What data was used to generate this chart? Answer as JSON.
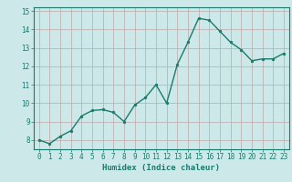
{
  "x": [
    0,
    1,
    2,
    3,
    4,
    5,
    6,
    7,
    8,
    9,
    10,
    11,
    12,
    13,
    14,
    15,
    16,
    17,
    18,
    19,
    20,
    21,
    22,
    23
  ],
  "y": [
    8.0,
    7.8,
    8.2,
    8.5,
    9.3,
    9.6,
    9.65,
    9.5,
    9.0,
    9.9,
    10.3,
    11.0,
    10.0,
    12.1,
    13.3,
    14.6,
    14.5,
    13.9,
    13.3,
    12.9,
    12.3,
    12.4,
    12.4,
    12.7
  ],
  "xlabel": "Humidex (Indice chaleur)",
  "ylim": [
    7.5,
    15.2
  ],
  "xlim": [
    -0.5,
    23.5
  ],
  "yticks": [
    8,
    9,
    10,
    11,
    12,
    13,
    14,
    15
  ],
  "xticks": [
    0,
    1,
    2,
    3,
    4,
    5,
    6,
    7,
    8,
    9,
    10,
    11,
    12,
    13,
    14,
    15,
    16,
    17,
    18,
    19,
    20,
    21,
    22,
    23
  ],
  "line_color": "#1a7a6e",
  "marker_color": "#1a7a6e",
  "bg_color": "#cce8e8",
  "grid_color": "#c0a8a8",
  "axis_color": "#1a7a6e",
  "label_color": "#1a7a6e",
  "tick_color": "#1a7a6e",
  "xlabel_fontsize": 6.5,
  "tick_fontsize": 5.5,
  "linewidth": 1.0,
  "markersize": 2.0
}
